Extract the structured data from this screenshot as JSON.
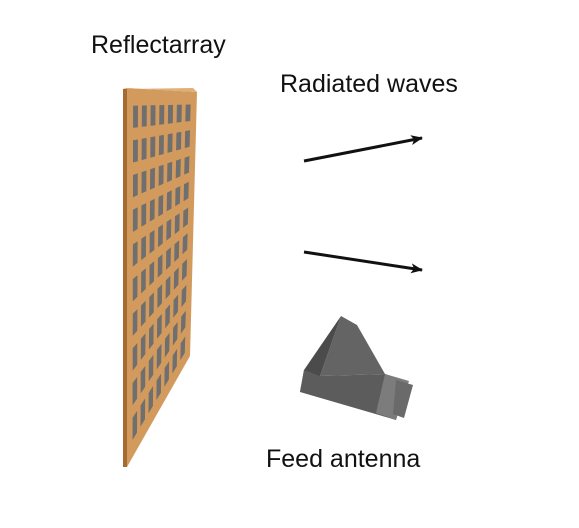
{
  "labels": {
    "reflectarray": "Reflectarray",
    "radiated_waves": "Radiated waves",
    "feed_antenna": "Feed antenna"
  },
  "reflectarray": {
    "rows": 10,
    "cols": 7
  },
  "colors": {
    "board": "#d39a5e",
    "board_edge": "#a56b33",
    "patch": "#6f6f6f",
    "arrow": "#111111",
    "horn_dark": "#4b4b4b",
    "horn_mid": "#646464",
    "horn_light": "#7c7c7c"
  },
  "icons": {
    "reflectarray": "reflectarray-panel",
    "wave_arrows": "arrow-right-icon",
    "feed": "horn-antenna"
  }
}
